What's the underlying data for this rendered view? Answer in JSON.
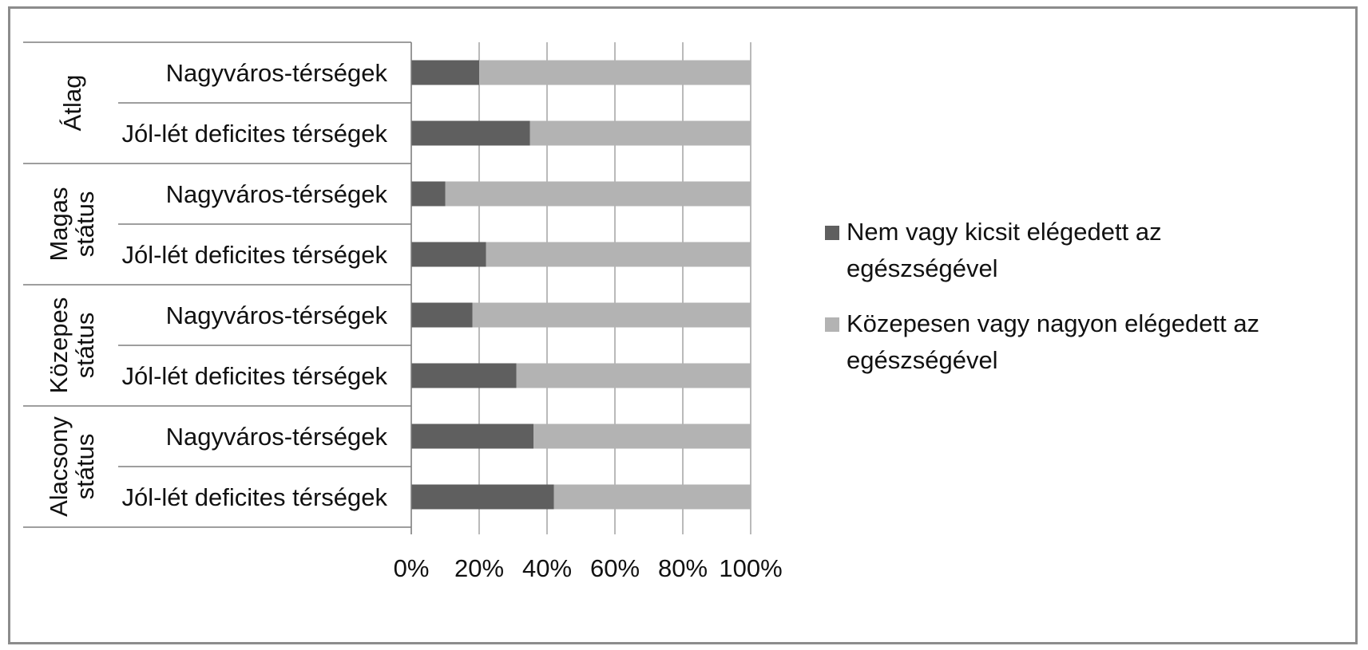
{
  "chart_data": {
    "type": "bar",
    "orientation": "horizontal",
    "stacked": "percent",
    "title": "",
    "xlabel": "",
    "ylabel": "",
    "xlim": [
      0,
      100
    ],
    "x_ticks": [
      "0%",
      "20%",
      "40%",
      "60%",
      "80%",
      "100%"
    ],
    "grid": "vertical",
    "legend_position": "right",
    "groups": [
      {
        "label": "Átlag",
        "categories": [
          "Nagyváros-térségek",
          "Jól-lét deficites térségek"
        ]
      },
      {
        "label": "Magas státus",
        "categories": [
          "Nagyváros-térségek",
          "Jól-lét deficites térségek"
        ]
      },
      {
        "label": "Közepes státus",
        "categories": [
          "Nagyváros-térségek",
          "Jól-lét deficites térségek"
        ]
      },
      {
        "label": "Alacsony státus",
        "categories": [
          "Nagyváros-térségek",
          "Jól-lét deficites térségek"
        ]
      }
    ],
    "series": [
      {
        "name": "Nem vagy kicsit elégedett az egészségével",
        "color": "#5f5f5f",
        "values": [
          20,
          35,
          10,
          22,
          18,
          31,
          36,
          42
        ]
      },
      {
        "name": "Közepesen vagy nagyon elégedett az egészségével",
        "color": "#b3b3b3",
        "values": [
          80,
          65,
          90,
          78,
          82,
          69,
          64,
          58
        ]
      }
    ]
  }
}
